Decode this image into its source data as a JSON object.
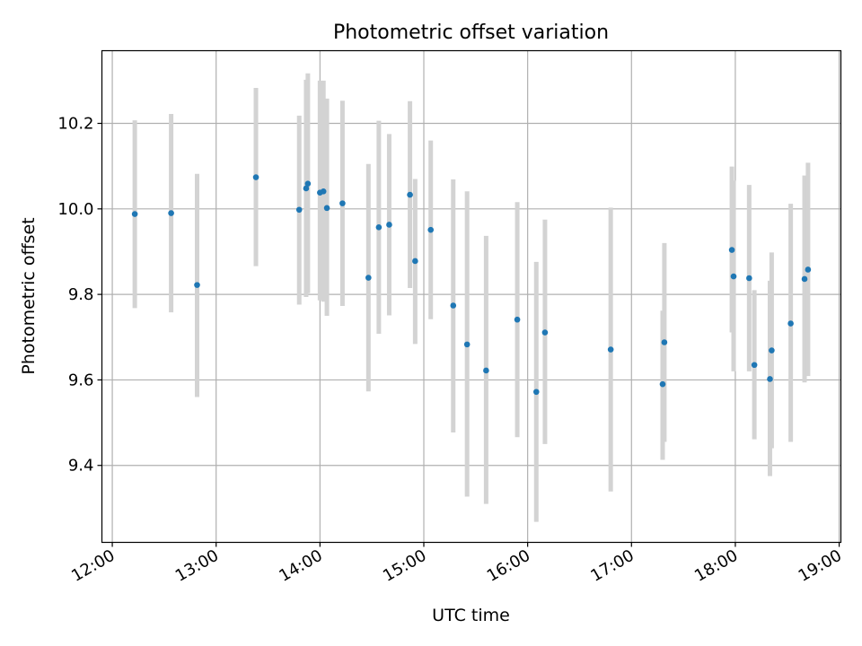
{
  "chart_data": {
    "type": "scatter",
    "title": "Photometric offset variation",
    "xlabel": "UTC time",
    "ylabel": "Photometric offset",
    "xlim": [
      "11:54",
      "19:01"
    ],
    "ylim": [
      9.22,
      10.37
    ],
    "x_ticks": [
      "12:00",
      "13:00",
      "14:00",
      "15:00",
      "16:00",
      "17:00",
      "18:00",
      "19:00"
    ],
    "y_ticks": [
      9.4,
      9.6,
      9.8,
      10.0,
      10.2
    ],
    "grid": true,
    "colors": {
      "point": "#1f77b4",
      "errorbar": "#d3d3d3",
      "grid": "#b0b0b0"
    },
    "points": [
      {
        "x": "12:13",
        "y": 9.988,
        "err_low": 9.768,
        "err_high": 10.207
      },
      {
        "x": "12:34",
        "y": 9.99,
        "err_low": 9.758,
        "err_high": 10.222
      },
      {
        "x": "12:49",
        "y": 9.822,
        "err_low": 9.56,
        "err_high": 10.082
      },
      {
        "x": "13:23",
        "y": 10.074,
        "err_low": 9.866,
        "err_high": 10.283
      },
      {
        "x": "13:48",
        "y": 9.998,
        "err_low": 9.776,
        "err_high": 10.218
      },
      {
        "x": "13:52",
        "y": 10.048,
        "err_low": 9.794,
        "err_high": 10.302
      },
      {
        "x": "13:53",
        "y": 10.059,
        "err_low": 9.803,
        "err_high": 10.317
      },
      {
        "x": "14:00",
        "y": 10.038,
        "err_low": 9.786,
        "err_high": 10.3
      },
      {
        "x": "14:02",
        "y": 10.041,
        "err_low": 9.783,
        "err_high": 10.3
      },
      {
        "x": "14:04",
        "y": 10.002,
        "err_low": 9.75,
        "err_high": 10.258
      },
      {
        "x": "14:13",
        "y": 10.013,
        "err_low": 9.773,
        "err_high": 10.253
      },
      {
        "x": "14:28",
        "y": 9.839,
        "err_low": 9.573,
        "err_high": 10.105
      },
      {
        "x": "14:34",
        "y": 9.957,
        "err_low": 9.708,
        "err_high": 10.206
      },
      {
        "x": "14:40",
        "y": 9.963,
        "err_low": 9.751,
        "err_high": 10.175
      },
      {
        "x": "14:52",
        "y": 10.033,
        "err_low": 9.815,
        "err_high": 10.252
      },
      {
        "x": "14:55",
        "y": 9.878,
        "err_low": 9.684,
        "err_high": 10.07
      },
      {
        "x": "15:04",
        "y": 9.951,
        "err_low": 9.742,
        "err_high": 10.16
      },
      {
        "x": "15:17",
        "y": 9.774,
        "err_low": 9.477,
        "err_high": 10.069
      },
      {
        "x": "15:25",
        "y": 9.683,
        "err_low": 9.327,
        "err_high": 10.041
      },
      {
        "x": "15:36",
        "y": 9.622,
        "err_low": 9.31,
        "err_high": 9.937
      },
      {
        "x": "15:54",
        "y": 9.741,
        "err_low": 9.466,
        "err_high": 10.016
      },
      {
        "x": "16:05",
        "y": 9.572,
        "err_low": 9.268,
        "err_high": 9.876
      },
      {
        "x": "16:10",
        "y": 9.711,
        "err_low": 9.45,
        "err_high": 9.975
      },
      {
        "x": "16:48",
        "y": 9.671,
        "err_low": 9.339,
        "err_high": 10.003
      },
      {
        "x": "17:18",
        "y": 9.59,
        "err_low": 9.413,
        "err_high": 9.762
      },
      {
        "x": "17:19",
        "y": 9.688,
        "err_low": 9.455,
        "err_high": 9.92
      },
      {
        "x": "17:58",
        "y": 9.904,
        "err_low": 9.711,
        "err_high": 10.099
      },
      {
        "x": "17:59",
        "y": 9.842,
        "err_low": 9.62,
        "err_high": 10.066
      },
      {
        "x": "18:08",
        "y": 9.838,
        "err_low": 9.62,
        "err_high": 10.056
      },
      {
        "x": "18:11",
        "y": 9.635,
        "err_low": 9.461,
        "err_high": 9.81
      },
      {
        "x": "18:20",
        "y": 9.602,
        "err_low": 9.375,
        "err_high": 9.832
      },
      {
        "x": "18:21",
        "y": 9.669,
        "err_low": 9.44,
        "err_high": 9.898
      },
      {
        "x": "18:32",
        "y": 9.732,
        "err_low": 9.455,
        "err_high": 10.012
      },
      {
        "x": "18:40",
        "y": 9.836,
        "err_low": 9.594,
        "err_high": 10.078
      },
      {
        "x": "18:42",
        "y": 9.858,
        "err_low": 9.609,
        "err_high": 10.108
      }
    ]
  }
}
